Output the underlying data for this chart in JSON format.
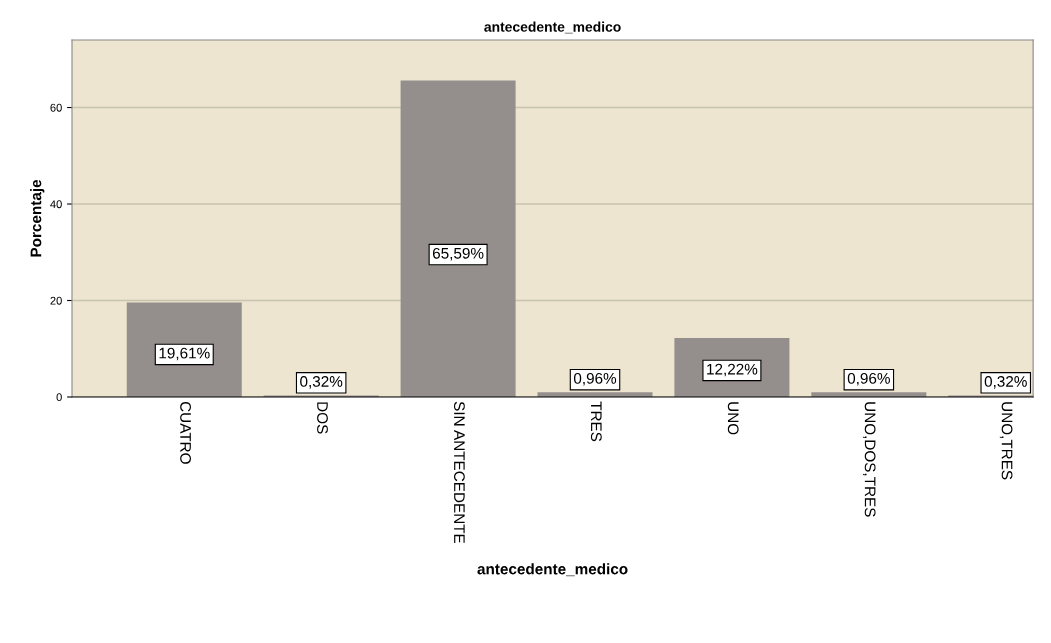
{
  "chart_data": {
    "type": "bar",
    "title": "antecedente_medico",
    "xlabel": "antecedente_medico",
    "ylabel": "Porcentaje",
    "categories": [
      "CUATRO",
      "DOS",
      "SIN ANTECEDENTE",
      "TRES",
      "UNO",
      "UNO,DOS,TRES",
      "UNO,TRES"
    ],
    "values": [
      19.61,
      0.32,
      65.59,
      0.96,
      12.22,
      0.96,
      0.32
    ],
    "value_labels": [
      "19,61%",
      "0,32%",
      "65,59%",
      "0,96%",
      "12,22%",
      "0,96%",
      "0,32%"
    ],
    "color": "#948f8d",
    "ylim": [
      0,
      74
    ],
    "yticks": [
      0,
      20,
      40,
      60
    ],
    "grid": "y"
  }
}
